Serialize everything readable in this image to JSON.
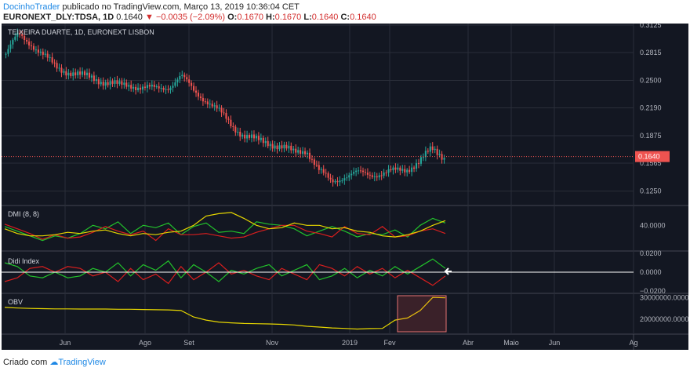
{
  "header": {
    "author": "DocinhoTrader",
    "published": "publicado no TradingView.com, Março 13, 2019 10:36:04 CET",
    "symbol": "EURONEXT_DLY:TDSA, 1D",
    "last": "0.1640",
    "change_arrow": "▼",
    "change": "−0.0035 (−2.09%)",
    "o_label": "O:",
    "o": "0.1670",
    "h_label": "H:",
    "h": "0.1670",
    "l_label": "L:",
    "l": "0.1640",
    "c_label": "C:",
    "c": "0.1640"
  },
  "footer": {
    "created_with": "Criado com",
    "brand": "TradingView"
  },
  "colors": {
    "background": "#131722",
    "up": "#26a69a",
    "down": "#ef5350",
    "grid": "#2a2e39",
    "dmi_plus": "#22c12b",
    "dmi_minus": "#d81e1e",
    "adx": "#e6d600",
    "obv": "#e6d600",
    "price_label": "#ef5350",
    "text": "#b2b5be"
  },
  "chart_data": [
    {
      "type": "candlestick",
      "title": "TEIXEIRA DUARTE, 1D, EURONEXT LISBON",
      "x_ticks": [
        "Jun",
        "Ago",
        "Set",
        "Nov",
        "2019",
        "Fev",
        "Abr",
        "Maio",
        "Jun",
        "Ag"
      ],
      "y_ticks": [
        "0.3125",
        "0.2815",
        "0.2500",
        "0.2190",
        "0.1875",
        "0.1565",
        "0.1250"
      ],
      "ylim": [
        0.114,
        0.3125
      ],
      "last_price_label": "0.1640",
      "close_series": [
        {
          "x": "May",
          "y": 0.28
        },
        {
          "x": "May",
          "y": 0.302
        },
        {
          "x": "May",
          "y": 0.292
        },
        {
          "x": "May",
          "y": 0.278
        },
        {
          "x": "Jun",
          "y": 0.265
        },
        {
          "x": "Jun",
          "y": 0.26
        },
        {
          "x": "Jul",
          "y": 0.255
        },
        {
          "x": "Jul",
          "y": 0.253
        },
        {
          "x": "Jul",
          "y": 0.248
        },
        {
          "x": "Jul",
          "y": 0.244
        },
        {
          "x": "Aug",
          "y": 0.245
        },
        {
          "x": "Aug",
          "y": 0.242
        },
        {
          "x": "Aug",
          "y": 0.24
        },
        {
          "x": "Aug",
          "y": 0.243
        },
        {
          "x": "Set",
          "y": 0.255
        },
        {
          "x": "Set",
          "y": 0.238
        },
        {
          "x": "Set",
          "y": 0.228
        },
        {
          "x": "Oct",
          "y": 0.215
        },
        {
          "x": "Oct",
          "y": 0.2
        },
        {
          "x": "Oct",
          "y": 0.188
        },
        {
          "x": "Nov",
          "y": 0.182
        },
        {
          "x": "Nov",
          "y": 0.18
        },
        {
          "x": "Nov",
          "y": 0.175
        },
        {
          "x": "Dec",
          "y": 0.168
        },
        {
          "x": "Dec",
          "y": 0.172
        },
        {
          "x": "Dec",
          "y": 0.148
        },
        {
          "x": "2019",
          "y": 0.135
        },
        {
          "x": "Jan",
          "y": 0.142
        },
        {
          "x": "Jan",
          "y": 0.145
        },
        {
          "x": "Jan",
          "y": 0.144
        },
        {
          "x": "Fev",
          "y": 0.145
        },
        {
          "x": "Fev",
          "y": 0.147
        },
        {
          "x": "Fev",
          "y": 0.15
        },
        {
          "x": "Fev",
          "y": 0.158
        },
        {
          "x": "Mar",
          "y": 0.172
        },
        {
          "x": "Mar",
          "y": 0.164
        }
      ]
    },
    {
      "type": "line",
      "title": "DMI (8, 8)",
      "y_ticks": [
        "40.0000"
      ],
      "series": [
        {
          "values": [
            38,
            30,
            22,
            14,
            22,
            18,
            26,
            40,
            34,
            46,
            26,
            40,
            36,
            44,
            24,
            38,
            44,
            28,
            30,
            26,
            46,
            42,
            40,
            34,
            22,
            30,
            38,
            30,
            20,
            26,
            24,
            32,
            20,
            40,
            52,
            44
          ]
        },
        {
          "values": [
            42,
            34,
            26,
            16,
            24,
            18,
            20,
            28,
            38,
            30,
            24,
            30,
            14,
            34,
            24,
            24,
            26,
            22,
            18,
            20,
            28,
            34,
            40,
            40,
            30,
            26,
            20,
            38,
            26,
            24,
            38,
            20,
            22,
            30,
            34,
            26
          ]
        },
        {
          "values": [
            34,
            26,
            22,
            22,
            24,
            28,
            26,
            30,
            32,
            26,
            22,
            26,
            24,
            28,
            30,
            40,
            56,
            60,
            62,
            52,
            40,
            34,
            36,
            44,
            40,
            40,
            34,
            36,
            30,
            28,
            22,
            20,
            24,
            30,
            40,
            48
          ]
        }
      ]
    },
    {
      "type": "line",
      "title": "Didi Index",
      "y_ticks": [
        "0.0200",
        "0.0000",
        "−0.0200"
      ],
      "series": [
        {
          "values": [
            0.01,
            0.006,
            -0.004,
            -0.006,
            0.0,
            -0.006,
            -0.004,
            0.004,
            0.0,
            0.01,
            -0.004,
            0.008,
            0.002,
            0.012,
            -0.006,
            0.008,
            0.0,
            -0.01,
            0.002,
            -0.002,
            0.004,
            0.008,
            -0.004,
            0.002,
            0.008,
            -0.008,
            -0.004,
            0.004,
            -0.006,
            0.002,
            -0.004,
            0.006,
            -0.002,
            0.006,
            0.014,
            0.004
          ]
        },
        {
          "values": [
            -0.01,
            -0.006,
            0.004,
            0.006,
            0.0,
            0.006,
            0.004,
            -0.004,
            0.0,
            -0.01,
            0.004,
            -0.008,
            -0.002,
            -0.012,
            0.006,
            -0.008,
            0.0,
            0.01,
            -0.002,
            0.002,
            -0.004,
            -0.008,
            0.004,
            -0.002,
            -0.008,
            0.008,
            0.004,
            -0.004,
            0.006,
            -0.002,
            0.004,
            -0.006,
            0.002,
            -0.006,
            -0.014,
            -0.004
          ]
        }
      ]
    },
    {
      "type": "line",
      "title": "OBV",
      "y_ticks": [
        "30000000.0000",
        "20000000.0000"
      ],
      "series": [
        {
          "values": [
            25500000,
            25200000,
            25000000,
            24900000,
            24800000,
            24800000,
            24700000,
            24700000,
            24700000,
            24600000,
            24600000,
            24500000,
            24400000,
            24300000,
            24000000,
            21000000,
            19500000,
            18600000,
            18200000,
            17900000,
            17800000,
            17700000,
            17500000,
            17200000,
            16600000,
            16200000,
            15800000,
            15600000,
            15300000,
            15500000,
            15600000,
            19500000,
            20500000,
            24000000,
            30200000,
            30000000
          ]
        }
      ]
    }
  ]
}
